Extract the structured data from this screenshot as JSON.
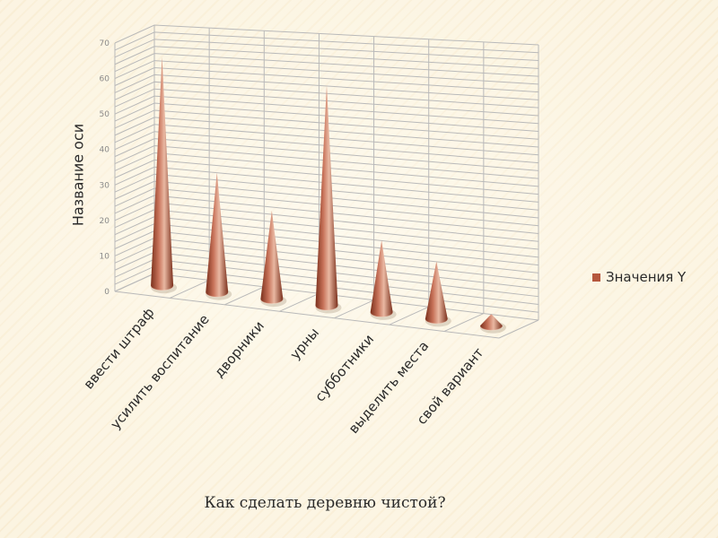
{
  "chart_data": {
    "type": "bar",
    "style": "3d-cone",
    "title": "",
    "xlabel": "Как сделать деревню чистой?",
    "ylabel": "Название оси",
    "categories": [
      "ввести штраф",
      "усилить воспитание",
      "дворники",
      "урны",
      "субботники",
      "выделить места",
      "свой вариант"
    ],
    "series": [
      {
        "name": "Значения Y",
        "values": [
          64,
          33,
          24,
          59,
          19,
          15,
          3
        ]
      }
    ],
    "ylim": [
      0,
      70
    ],
    "yticks": [
      0,
      10,
      20,
      30,
      40,
      50,
      60,
      70
    ],
    "grid": true,
    "legend_position": "right"
  },
  "colors": {
    "cone_dark": "#7a2f1b",
    "cone_mid": "#c8735a",
    "cone_light": "#e9b8a2",
    "grid": "#b9b9b9",
    "legend_swatch": "#b5573d"
  }
}
